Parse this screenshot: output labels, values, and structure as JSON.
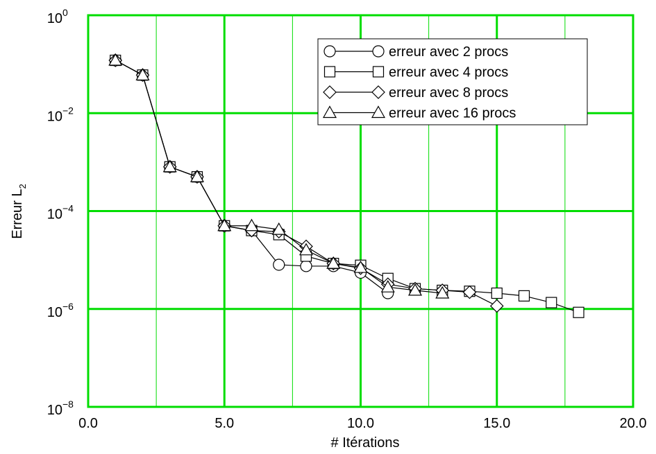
{
  "chart_data": {
    "type": "line",
    "xlabel": "# Itérations",
    "ylabel_main": "Erreur L",
    "ylabel_sub": "2",
    "xlim": [
      0,
      20
    ],
    "ylim": [
      1e-08,
      1
    ],
    "yscale": "log",
    "grid": true,
    "grid_color": "#00dd00",
    "legend_position": "top-right",
    "xticks": [
      {
        "value": 0,
        "label": "0.0"
      },
      {
        "value": 5,
        "label": "5.0"
      },
      {
        "value": 10,
        "label": "10.0"
      },
      {
        "value": 15,
        "label": "15.0"
      },
      {
        "value": 20,
        "label": "20.0"
      }
    ],
    "yticks": [
      {
        "value": 1,
        "base": "10",
        "exp": "0"
      },
      {
        "value": 0.01,
        "base": "10",
        "exp": "−2"
      },
      {
        "value": 0.0001,
        "base": "10",
        "exp": "−4"
      },
      {
        "value": 1e-06,
        "base": "10",
        "exp": "−6"
      },
      {
        "value": 1e-08,
        "base": "10",
        "exp": "−8"
      }
    ],
    "x_minor_grid": [
      2.5,
      7.5,
      12.5,
      17.5
    ],
    "series": [
      {
        "name": "erreur avec 2 procs",
        "marker": "circle",
        "x": [
          1,
          2,
          3,
          4,
          5,
          6,
          7,
          8,
          9,
          10,
          11
        ],
        "y": [
          0.12,
          0.06,
          0.0008,
          0.0005,
          5e-05,
          4e-05,
          8e-06,
          7.5e-06,
          7.5e-06,
          5.5e-06,
          2.1e-06
        ]
      },
      {
        "name": "erreur avec 4 procs",
        "marker": "square",
        "x": [
          1,
          2,
          3,
          4,
          5,
          6,
          7,
          8,
          9,
          10,
          11,
          12,
          13,
          14,
          15,
          16,
          17,
          18
        ],
        "y": [
          0.12,
          0.06,
          0.0008,
          0.0005,
          5e-05,
          4e-05,
          3.3e-05,
          1.2e-05,
          8.5e-06,
          7.8e-06,
          4.2e-06,
          2.6e-06,
          2.4e-06,
          2.3e-06,
          2.1e-06,
          1.85e-06,
          1.35e-06,
          8.5e-07
        ]
      },
      {
        "name": "erreur avec 8 procs",
        "marker": "diamond",
        "x": [
          1,
          2,
          3,
          4,
          5,
          6,
          7,
          8,
          9,
          10,
          11,
          12,
          13,
          14,
          15
        ],
        "y": [
          0.12,
          0.06,
          0.0008,
          0.0005,
          5e-05,
          4e-05,
          3.8e-05,
          1.9e-05,
          8.5e-06,
          6.8e-06,
          3.2e-06,
          2.6e-06,
          2.4e-06,
          2.2e-06,
          1.15e-06
        ]
      },
      {
        "name": "erreur avec 16 procs",
        "marker": "triangle",
        "x": [
          1,
          2,
          3,
          4,
          5,
          6,
          7,
          8,
          9,
          10,
          11,
          12,
          13
        ],
        "y": [
          0.12,
          0.06,
          0.0008,
          0.0005,
          5e-05,
          5e-05,
          4.2e-05,
          1.6e-05,
          8.5e-06,
          7e-06,
          2.8e-06,
          2.4e-06,
          2.1e-06
        ]
      }
    ]
  }
}
